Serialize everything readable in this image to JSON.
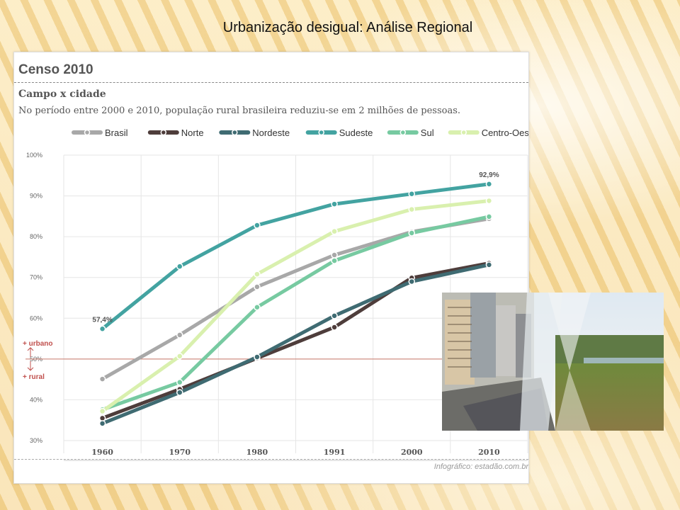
{
  "slide": {
    "title": "Urbanização desigual: Análise Regional"
  },
  "panel": {
    "title": "Censo 2010",
    "subtitle": "Campo x cidade",
    "description": "No período entre 2000 e 2010, população rural brasileira reduziu-se em 2 milhões de pessoas.",
    "credit": "Infográfico: estadão.com.br"
  },
  "chart_data": {
    "type": "line",
    "x": [
      "1960",
      "1970",
      "1980",
      "1991",
      "2000",
      "2010"
    ],
    "yticks": [
      "100%",
      "90%",
      "80%",
      "70%",
      "60%",
      "50%",
      "40%",
      "30%"
    ],
    "ylim": [
      30,
      100
    ],
    "threshold": {
      "value": 50,
      "above_label": "+ urbano",
      "below_label": "+ rural"
    },
    "legend_position": "top",
    "series": [
      {
        "name": "Brasil",
        "color": "#a8a8a8",
        "values": [
          45.1,
          55.9,
          67.7,
          75.5,
          81.2,
          84.4
        ]
      },
      {
        "name": "Norte",
        "color": "#4e3d3b",
        "values": [
          35.5,
          42.6,
          50.2,
          57.8,
          69.9,
          73.5
        ]
      },
      {
        "name": "Nordeste",
        "color": "#3f6b72",
        "values": [
          34.2,
          41.8,
          50.5,
          60.6,
          69.0,
          73.1
        ]
      },
      {
        "name": "Sudeste",
        "color": "#43a3a1",
        "values": [
          57.4,
          72.7,
          82.8,
          88.0,
          90.5,
          92.9
        ]
      },
      {
        "name": "Sul",
        "color": "#77caa1",
        "values": [
          37.6,
          44.3,
          62.7,
          74.1,
          80.9,
          84.9
        ]
      },
      {
        "name": "Centro-Oeste",
        "color": "#d9f0ae",
        "values": [
          37.2,
          50.7,
          70.8,
          81.3,
          86.7,
          88.8
        ]
      }
    ],
    "annotations": [
      {
        "series": "Sudeste",
        "x": "1960",
        "text": "57,4%"
      },
      {
        "series": "Sudeste",
        "x": "2010",
        "text": "92,9%"
      }
    ]
  },
  "photo": {
    "description_icon": "city-and-countryside-photo"
  }
}
